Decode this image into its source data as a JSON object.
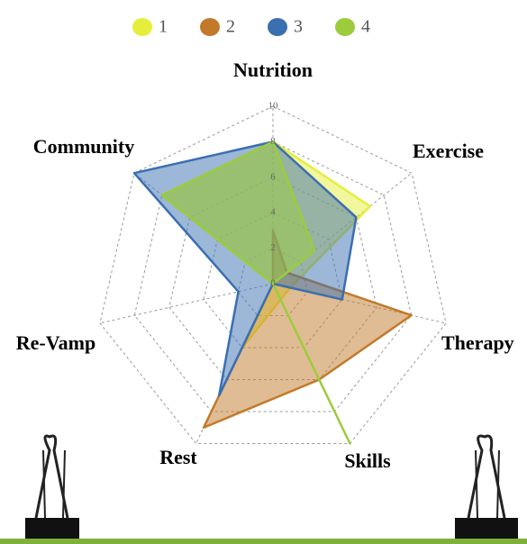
{
  "chart_data": {
    "type": "radar",
    "categories": [
      "Nutrition",
      "Exercise",
      "Therapy",
      "Skills",
      "Rest",
      "Re-Vamp",
      "Community"
    ],
    "series": [
      {
        "name": "1",
        "color": "#e6ee3c",
        "values": [
          8,
          7,
          1,
          1,
          4,
          0,
          8
        ]
      },
      {
        "name": "2",
        "color": "#c27a2a",
        "values": [
          3,
          1,
          8,
          6,
          9,
          0,
          0
        ]
      },
      {
        "name": "3",
        "color": "#3a6fb0",
        "values": [
          8,
          6,
          4,
          0,
          7,
          2,
          10
        ]
      },
      {
        "name": "4",
        "color": "#9ccc3c",
        "values": [
          8,
          3,
          0,
          10,
          0,
          0,
          8
        ]
      }
    ],
    "rlim": [
      0,
      10
    ],
    "rticks": [
      0,
      2,
      4,
      6,
      8,
      10
    ],
    "grid": true
  }
}
